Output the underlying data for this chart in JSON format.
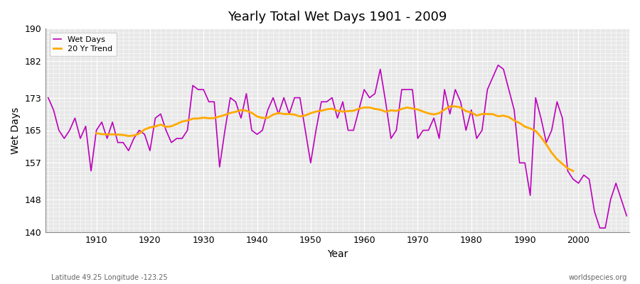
{
  "title": "Yearly Total Wet Days 1901 - 2009",
  "xlabel": "Year",
  "ylabel": "Wet Days",
  "bottom_left_text": "Latitude 49.25 Longitude -123.25",
  "bottom_right_text": "worldspecies.org",
  "ylim": [
    140,
    190
  ],
  "yticks": [
    140,
    148,
    157,
    165,
    173,
    182,
    190
  ],
  "xlim": [
    1901,
    2009
  ],
  "xticks": [
    1910,
    1920,
    1930,
    1940,
    1950,
    1960,
    1970,
    1980,
    1990,
    2000
  ],
  "wet_days_color": "#bb00bb",
  "trend_color": "#ffaa00",
  "background_color": "#e8e8e8",
  "grid_color": "#ffffff",
  "legend_wet": "Wet Days",
  "legend_trend": "20 Yr Trend",
  "years": [
    1901,
    1902,
    1903,
    1904,
    1905,
    1906,
    1907,
    1908,
    1909,
    1910,
    1911,
    1912,
    1913,
    1914,
    1915,
    1916,
    1917,
    1918,
    1919,
    1920,
    1921,
    1922,
    1923,
    1924,
    1925,
    1926,
    1927,
    1928,
    1929,
    1930,
    1931,
    1932,
    1933,
    1934,
    1935,
    1936,
    1937,
    1938,
    1939,
    1940,
    1941,
    1942,
    1943,
    1944,
    1945,
    1946,
    1947,
    1948,
    1949,
    1950,
    1951,
    1952,
    1953,
    1954,
    1955,
    1956,
    1957,
    1958,
    1959,
    1960,
    1961,
    1962,
    1963,
    1964,
    1965,
    1966,
    1967,
    1968,
    1969,
    1970,
    1971,
    1972,
    1973,
    1974,
    1975,
    1976,
    1977,
    1978,
    1979,
    1980,
    1981,
    1982,
    1983,
    1984,
    1985,
    1986,
    1987,
    1988,
    1989,
    1990,
    1991,
    1992,
    1993,
    1994,
    1995,
    1996,
    1997,
    1998,
    1999,
    2000,
    2001,
    2002,
    2003,
    2004,
    2005,
    2006,
    2007,
    2008,
    2009
  ],
  "wet_days": [
    173,
    170,
    165,
    163,
    165,
    168,
    163,
    166,
    155,
    165,
    167,
    163,
    167,
    162,
    162,
    160,
    163,
    165,
    164,
    160,
    168,
    169,
    165,
    162,
    163,
    163,
    165,
    176,
    175,
    175,
    172,
    172,
    156,
    165,
    173,
    172,
    168,
    174,
    165,
    164,
    165,
    170,
    173,
    169,
    173,
    169,
    173,
    173,
    165,
    157,
    165,
    172,
    172,
    173,
    168,
    172,
    165,
    165,
    170,
    175,
    173,
    174,
    180,
    172,
    163,
    165,
    175,
    175,
    175,
    163,
    165,
    165,
    168,
    163,
    175,
    169,
    175,
    172,
    165,
    170,
    163,
    165,
    175,
    178,
    181,
    180,
    175,
    170,
    157,
    157,
    149,
    173,
    168,
    162,
    165,
    172,
    168,
    155,
    153,
    152,
    154,
    153,
    145,
    141,
    141,
    148,
    152,
    148,
    144
  ]
}
